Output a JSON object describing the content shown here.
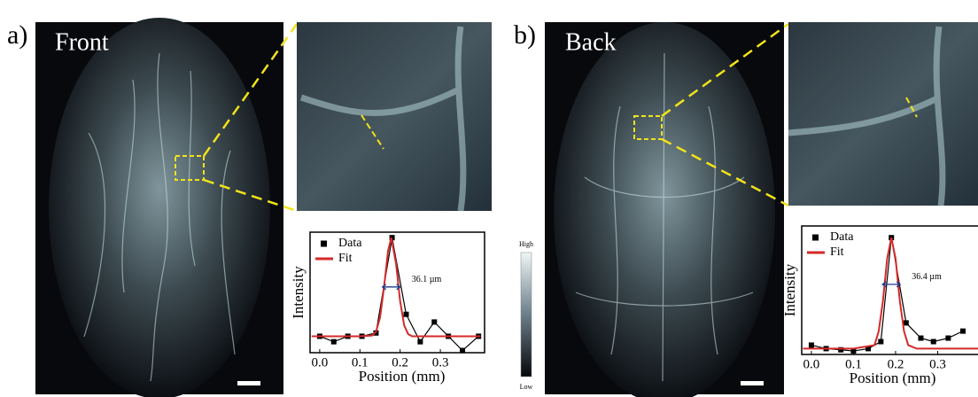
{
  "panels": [
    {
      "label": "a)",
      "image_label": "Front"
    },
    {
      "label": "b)",
      "image_label": "Back"
    }
  ],
  "colorbar": {
    "high": "High",
    "low": "Low"
  },
  "chart_data": [
    {
      "type": "line",
      "xlabel": "Position (mm)",
      "ylabel": "Intensity",
      "annotation": "36.1 µm",
      "xlim": [
        -0.024,
        0.41
      ],
      "ylim": [
        0,
        1.1
      ],
      "xticks": [
        {
          "value": 0,
          "label": "0.0"
        },
        0.1,
        0.2,
        0.3
      ],
      "series": [
        {
          "name": "Data",
          "color": "#000000",
          "marker": "square",
          "x": [
            0,
            0.035,
            0.07,
            0.105,
            0.14,
            0.18,
            0.215,
            0.25,
            0.285,
            0.32,
            0.355,
            0.395
          ],
          "values": [
            0.15,
            0.1,
            0.15,
            0.15,
            0.18,
            1.05,
            0.35,
            0.1,
            0.28,
            0.15,
            0.02,
            0.15
          ]
        },
        {
          "name": "Fit",
          "color": "#d42a2a",
          "x": [
            -0.02,
            0.1,
            0.13,
            0.14,
            0.15,
            0.16,
            0.17,
            0.178,
            0.19,
            0.2,
            0.21,
            0.22,
            0.23,
            0.26,
            0.4
          ],
          "values": [
            0.15,
            0.15,
            0.157,
            0.19,
            0.32,
            0.6,
            0.93,
            1.05,
            0.81,
            0.47,
            0.25,
            0.17,
            0.15,
            0.15,
            0.15
          ]
        }
      ]
    },
    {
      "type": "line",
      "xlabel": "Position (mm)",
      "ylabel": "Intensity",
      "annotation": "36.4 µm",
      "xlim": [
        -0.023,
        0.4
      ],
      "ylim": [
        0,
        1.1
      ],
      "xticks": [
        {
          "value": 0,
          "label": "0.0"
        },
        0.1,
        0.2,
        0.3
      ],
      "series": [
        {
          "name": "Data",
          "color": "#000000",
          "marker": "square",
          "x": [
            0,
            0.035,
            0.07,
            0.1,
            0.135,
            0.165,
            0.19,
            0.225,
            0.26,
            0.29,
            0.325,
            0.36
          ],
          "values": [
            0.08,
            0.05,
            0.04,
            0.03,
            0.05,
            0.11,
            1.0,
            0.27,
            0.14,
            0.11,
            0.14,
            0.2
          ]
        },
        {
          "name": "Fit",
          "color": "#d42a2a",
          "x": [
            -0.02,
            0.1,
            0.15,
            0.16,
            0.17,
            0.18,
            0.19,
            0.2,
            0.21,
            0.22,
            0.23,
            0.25,
            0.4
          ],
          "values": [
            0.05,
            0.05,
            0.08,
            0.2,
            0.46,
            0.82,
            1.0,
            0.82,
            0.46,
            0.2,
            0.08,
            0.05,
            0.05
          ]
        }
      ]
    }
  ]
}
